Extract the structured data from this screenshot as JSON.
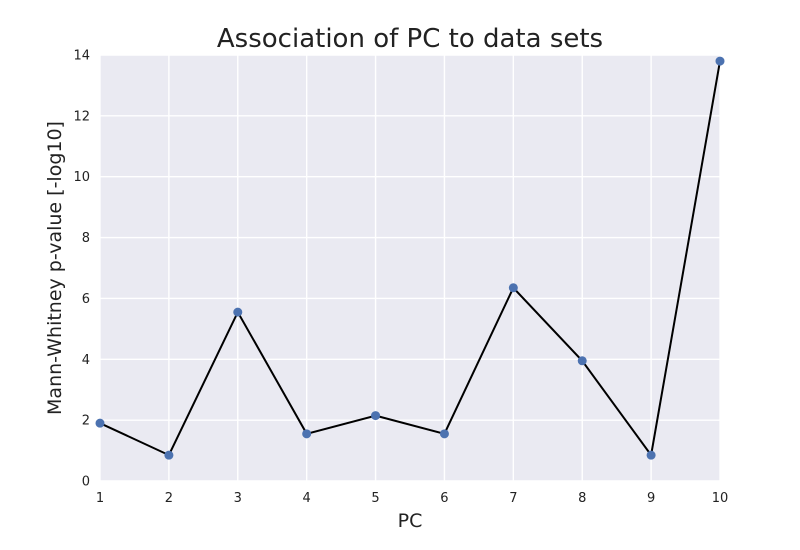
{
  "chart_data": {
    "type": "line",
    "title": "Association of PC to data sets",
    "xlabel": "PC",
    "ylabel": "Mann-Whitney p-value [-log10]",
    "x": [
      1,
      2,
      3,
      4,
      5,
      6,
      7,
      8,
      9,
      10
    ],
    "y": [
      1.9,
      0.85,
      5.55,
      1.55,
      2.15,
      1.55,
      6.35,
      3.95,
      0.85,
      13.8
    ],
    "xlim": [
      1,
      10
    ],
    "ylim": [
      0,
      14
    ],
    "xticks": [
      1,
      2,
      3,
      4,
      5,
      6,
      7,
      8,
      9,
      10
    ],
    "yticks": [
      0,
      2,
      4,
      6,
      8,
      10,
      12,
      14
    ],
    "grid": true,
    "colors": {
      "background": "#EAEAF2",
      "grid": "#FFFFFF",
      "line": "#000000",
      "marker": "#4C72B0"
    }
  }
}
